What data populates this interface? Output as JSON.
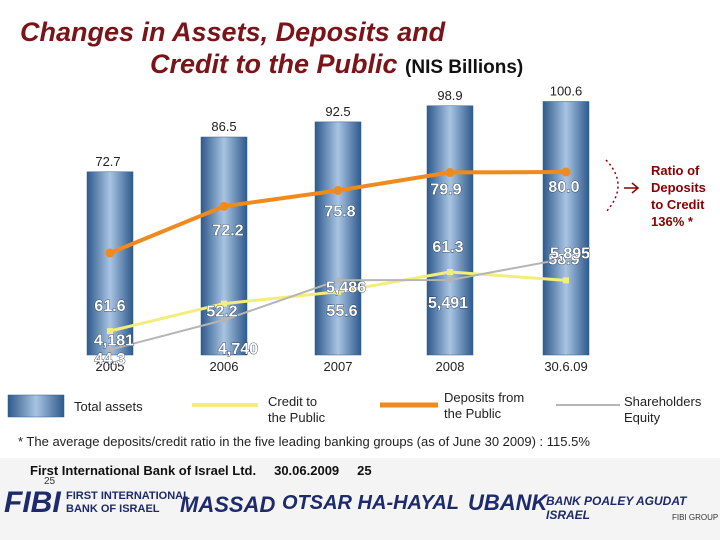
{
  "title": {
    "line1": "Changes in Assets, Deposits and",
    "line2": "Credit to the Public",
    "unit": "(NIS Billions)"
  },
  "chart_data": {
    "type": "bar",
    "categories": [
      "2005",
      "2006",
      "2007",
      "2008",
      "30.6.09"
    ],
    "bars": {
      "name": "Total assets",
      "values": [
        72.7,
        86.5,
        92.5,
        98.9,
        100.6
      ],
      "labels": [
        "72.7",
        "86.5",
        "92.5",
        "98.9",
        "100.6"
      ]
    },
    "lines": [
      {
        "name": "Deposits from the Public",
        "values": [
          61.6,
          72.2,
          75.8,
          79.9,
          80.0
        ],
        "labels": [
          "61.6",
          "72.2",
          "75.8",
          "79.9",
          "80.0"
        ],
        "color": "#f08a1c"
      },
      {
        "name": "Credit to the Public",
        "values": [
          44.3,
          52.2,
          55.6,
          61.3,
          58.9
        ],
        "labels": [
          "44.3",
          "52.2",
          "55.6",
          "61.3",
          "58.9"
        ],
        "color": "#f3ee7a"
      },
      {
        "name": "Shareholders Equity",
        "values": [
          4181,
          4740,
          5486,
          5491,
          5895
        ],
        "labels": [
          "4,181",
          "4,740",
          "5,486",
          "5,491",
          "5,895"
        ],
        "color": "#b5b5b5"
      }
    ],
    "annotation": "Ratio of Deposits to Credit 136% *",
    "legend_position": "bottom",
    "grid": false
  },
  "legend": {
    "total_assets": "Total assets",
    "credit_line1": "Credit to",
    "credit_line2": "the Public",
    "deposits_line1": "Deposits from",
    "deposits_line2": "the Public",
    "equity_line1": "Shareholders",
    "equity_line2": "Equity"
  },
  "ratio_note": {
    "line1": "Ratio of",
    "line2": "Deposits",
    "line3": "to Credit",
    "line4": "136% *"
  },
  "footnote": "* The average deposits/credit ratio in the five leading banking groups (as of June 30 2009) : 115.5%",
  "footer": {
    "bank": "First International Bank of Israel Ltd.",
    "date": "30.06.2009",
    "page": "25",
    "page_small": "25"
  },
  "logos": {
    "fibi": "FIBI",
    "fibi_full1": "FIRST INTERNATIONAL",
    "fibi_full2": "BANK OF ISRAEL",
    "massad": "MASSAD",
    "otsar": "OTSAR HA-HAYAL",
    "ubank": "UBANK",
    "poaley": "BANK POALEY AGUDAT ISRAEL",
    "fibi_group": "FIBI GROUP"
  },
  "colors": {
    "title": "#7a1418",
    "bar_fill": "#6a92c0",
    "deposits": "#f08a1c",
    "credit": "#f3ee7a",
    "equity": "#b5b5b5",
    "ratio_note": "#8b0000"
  }
}
